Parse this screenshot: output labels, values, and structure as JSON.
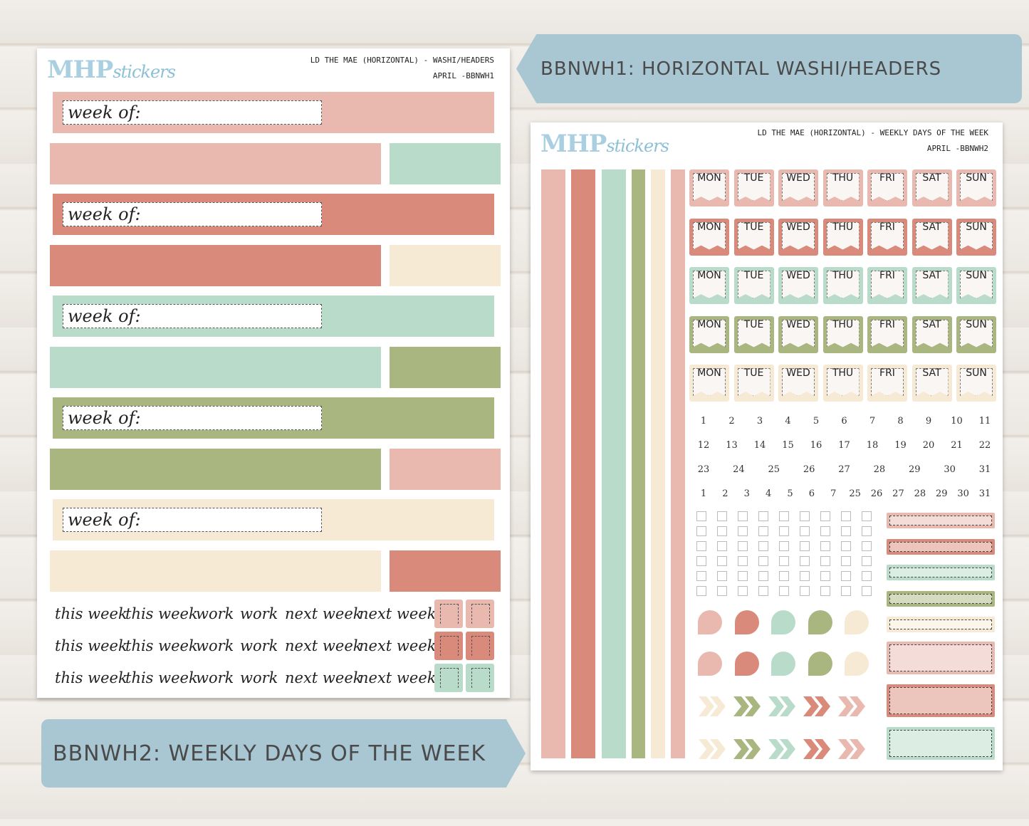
{
  "colors": {
    "pink": "#e9b9b0",
    "coral": "#d98a7a",
    "mint": "#b9dbc9",
    "olive": "#a9b67f",
    "cream": "#f6ead4",
    "banner": "#a9c6d3"
  },
  "banners": {
    "top": "BBNWH1: HORIZONTAL WASHI/HEADERS",
    "bottom": "BBNWH2: WEEKLY DAYS OF THE WEEK"
  },
  "left_sheet": {
    "logo": {
      "main": "MHP",
      "script": "stickers"
    },
    "title_line1": "LD THE MAE (HORIZONTAL) - WASHI/HEADERS",
    "title_line2": "APRIL -BBNWH1",
    "header_label": "week of:",
    "rows": [
      {
        "header": "pink",
        "strip": "pink",
        "block": "mint"
      },
      {
        "header": "coral",
        "strip": "coral",
        "block": "cream"
      },
      {
        "header": "mint",
        "strip": "mint",
        "block": "olive"
      },
      {
        "header": "olive",
        "strip": "olive",
        "block": "pink"
      },
      {
        "header": "cream",
        "strip": "cream",
        "block": "coral"
      }
    ],
    "words": [
      "this week",
      "this week",
      "work",
      "work",
      "next week",
      "next week"
    ],
    "flag_rows": [
      "pink",
      "coral",
      "mint"
    ]
  },
  "right_sheet": {
    "logo": {
      "main": "MHP",
      "script": "stickers"
    },
    "title_line1": "LD THE MAE (HORIZONTAL) - WEEKLY DAYS OF THE WEEK",
    "title_line2": "APRIL -BBNWH2",
    "vertical_strips": [
      "pink",
      "coral",
      "mint",
      "olive",
      "cream",
      "pink"
    ],
    "days": [
      "MON",
      "TUE",
      "WED",
      "THU",
      "FRI",
      "SAT",
      "SUN"
    ],
    "day_rows": [
      "pink",
      "coral",
      "mint",
      "olive",
      "cream"
    ],
    "number_rows": [
      [
        "1",
        "2",
        "3",
        "4",
        "5",
        "6",
        "7",
        "8",
        "9",
        "10",
        "11"
      ],
      [
        "12",
        "13",
        "14",
        "15",
        "16",
        "17",
        "18",
        "19",
        "20",
        "21",
        "22"
      ],
      [
        "23",
        "24",
        "25",
        "26",
        "27",
        "28",
        "29",
        "30",
        "31"
      ],
      [
        "1",
        "2",
        "3",
        "4",
        "5",
        "6",
        "7",
        "25",
        "26",
        "27",
        "28",
        "29",
        "30",
        "31"
      ]
    ],
    "small_boxes": [
      "pink",
      "coral",
      "mint",
      "olive",
      "cream"
    ],
    "large_boxes": [
      "pink",
      "coral",
      "mint"
    ],
    "half_circles": [
      "pink",
      "coral",
      "mint",
      "olive",
      "cream"
    ],
    "chevrons": [
      "cream",
      "olive",
      "mint",
      "coral",
      "pink"
    ]
  }
}
